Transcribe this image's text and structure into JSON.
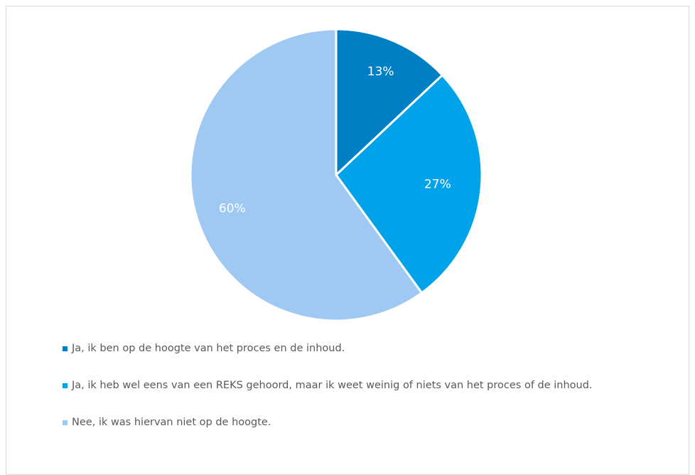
{
  "chart_data": {
    "type": "pie",
    "title": "",
    "categories": [
      "Ja, ik ben op de hoogte van het proces en de inhoud.",
      "Ja, ik heb wel eens van een REKS gehoord, maar ik weet weinig of niets van het proces of de inhoud.",
      "Nee, ik was hiervan niet op de hoogte."
    ],
    "values": [
      13,
      27,
      60
    ],
    "labels": [
      "13%",
      "27%",
      "60%"
    ],
    "colors": [
      "#007fc4",
      "#00a3ea",
      "#9fc8f2"
    ],
    "legend_position": "bottom-left"
  }
}
